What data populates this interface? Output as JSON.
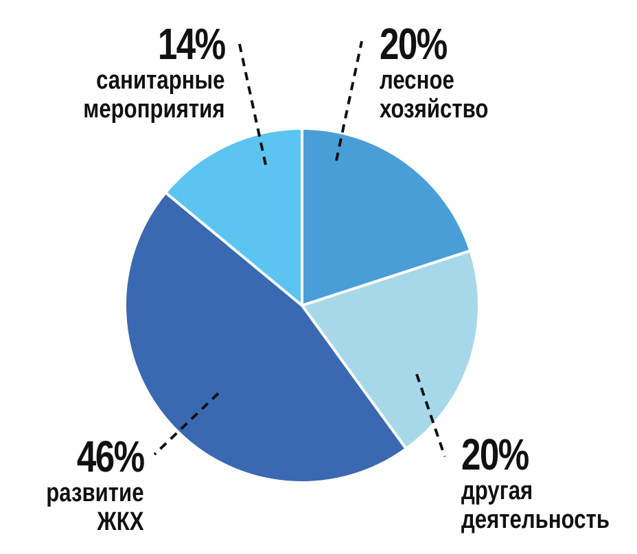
{
  "chart_data": {
    "type": "pie",
    "categories": [
      "лесное хозяйство",
      "другая деятельность",
      "развитие ЖКХ",
      "санитарные мероприятия"
    ],
    "values": [
      20,
      20,
      46,
      14
    ],
    "value_labels": [
      "20%",
      "20%",
      "46%",
      "14%"
    ],
    "colors": [
      "#4a9ed8",
      "#a7d8ea",
      "#3a69b1",
      "#5bc4f1"
    ]
  }
}
